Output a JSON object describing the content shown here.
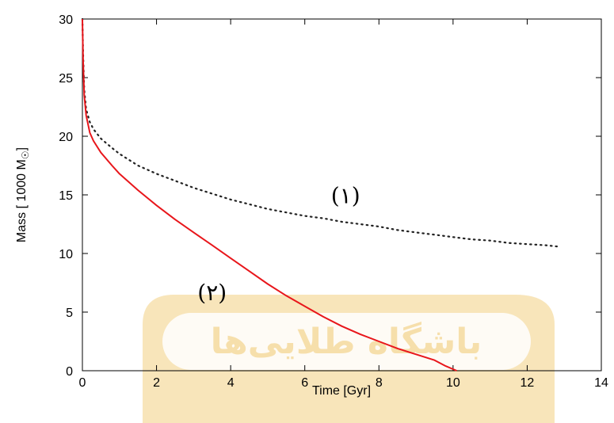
{
  "chart_data": {
    "type": "line",
    "xlabel": "Time [Gyr]",
    "ylabel": "Mass [ 1000 M",
    "ylabel_sub": "☉",
    "ylabel_end": "]",
    "xlim": [
      0,
      14
    ],
    "ylim": [
      0,
      30
    ],
    "x_ticks": [
      "0",
      "2",
      "4",
      "6",
      "8",
      "10",
      "12",
      "14"
    ],
    "y_ticks": [
      "0",
      "5",
      "10",
      "15",
      "20",
      "25",
      "30"
    ],
    "grid": false,
    "series": [
      {
        "label": "(١)",
        "style": "dotted",
        "color": "#222222",
        "points": [
          [
            0,
            30
          ],
          [
            0.02,
            27
          ],
          [
            0.05,
            24
          ],
          [
            0.1,
            22.3
          ],
          [
            0.2,
            21.2
          ],
          [
            0.3,
            20.6
          ],
          [
            0.5,
            19.8
          ],
          [
            0.8,
            19.0
          ],
          [
            1.0,
            18.5
          ],
          [
            1.5,
            17.5
          ],
          [
            2,
            16.8
          ],
          [
            2.5,
            16.2
          ],
          [
            3,
            15.6
          ],
          [
            3.5,
            15.1
          ],
          [
            4,
            14.6
          ],
          [
            4.5,
            14.2
          ],
          [
            5,
            13.8
          ],
          [
            5.5,
            13.5
          ],
          [
            6,
            13.2
          ],
          [
            6.5,
            13.0
          ],
          [
            7,
            12.7
          ],
          [
            7.5,
            12.5
          ],
          [
            8,
            12.3
          ],
          [
            8.5,
            12.0
          ],
          [
            9,
            11.8
          ],
          [
            9.5,
            11.6
          ],
          [
            10,
            11.4
          ],
          [
            10.5,
            11.2
          ],
          [
            11,
            11.1
          ],
          [
            11.5,
            10.9
          ],
          [
            12,
            10.8
          ],
          [
            12.5,
            10.7
          ],
          [
            12.8,
            10.6
          ]
        ]
      },
      {
        "label": "(٢)",
        "style": "solid",
        "color": "#e8161b",
        "points": [
          [
            0,
            30
          ],
          [
            0.02,
            26.5
          ],
          [
            0.05,
            23.5
          ],
          [
            0.1,
            21.8
          ],
          [
            0.2,
            20.3
          ],
          [
            0.3,
            19.6
          ],
          [
            0.5,
            18.6
          ],
          [
            0.8,
            17.5
          ],
          [
            1.0,
            16.8
          ],
          [
            1.5,
            15.4
          ],
          [
            2,
            14.1
          ],
          [
            2.5,
            12.9
          ],
          [
            3,
            11.8
          ],
          [
            3.5,
            10.7
          ],
          [
            4,
            9.6
          ],
          [
            4.5,
            8.5
          ],
          [
            5,
            7.4
          ],
          [
            5.5,
            6.4
          ],
          [
            6,
            5.5
          ],
          [
            6.5,
            4.6
          ],
          [
            7,
            3.8
          ],
          [
            7.5,
            3.1
          ],
          [
            8,
            2.5
          ],
          [
            8.5,
            1.9
          ],
          [
            9,
            1.4
          ],
          [
            9.5,
            0.9
          ],
          [
            9.8,
            0.4
          ],
          [
            10.1,
            0
          ]
        ]
      }
    ]
  },
  "annotations": [
    {
      "text": "(١)",
      "x": 7.1,
      "y": 14.3
    },
    {
      "text": "(٢)",
      "x": 3.5,
      "y": 6.0
    }
  ],
  "watermark": {
    "text": "باشگاه طلایی‌ها",
    "color": "#f6dca3"
  }
}
